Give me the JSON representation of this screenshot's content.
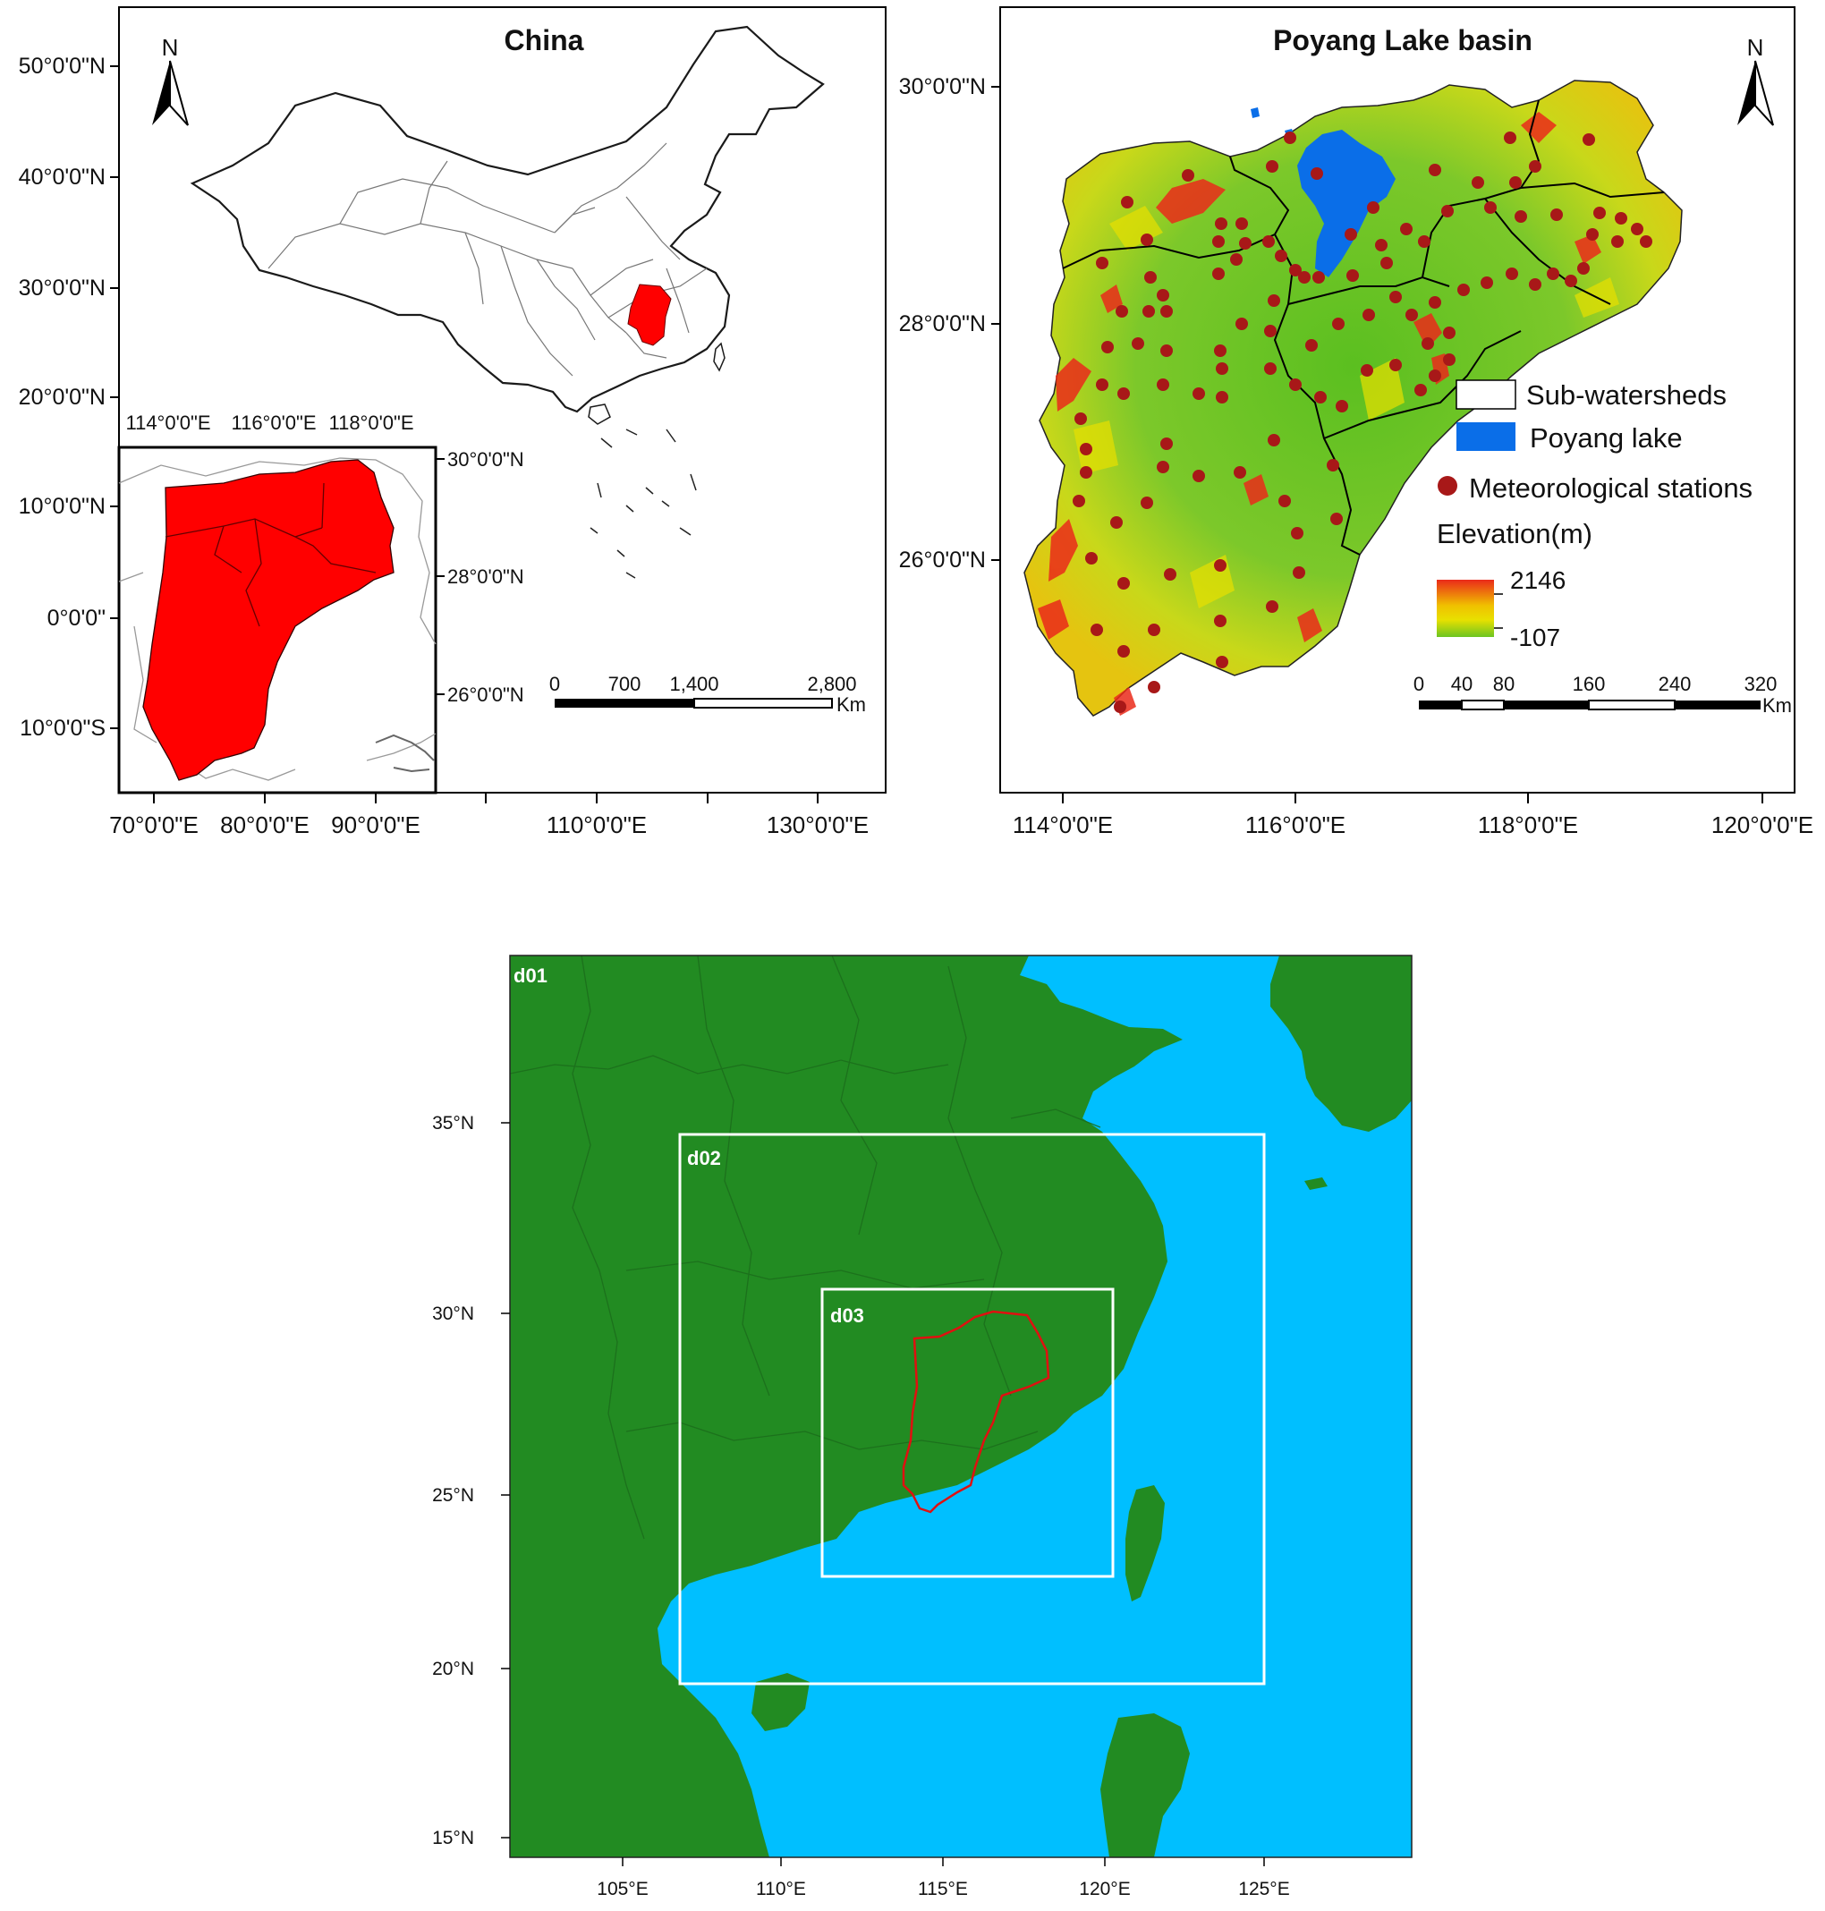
{
  "map_china": {
    "title": "China",
    "north": "N",
    "lat_labels": [
      "50°0'0\"N",
      "40°0'0\"N",
      "30°0'0\"N",
      "20°0'0\"N",
      "10°0'0\"N",
      "0°0'0\"",
      "10°0'0\"S"
    ],
    "lon_labels": [
      "70°0'0\"E",
      "80°0'0\"E",
      "90°0'0\"E",
      "110°0'0\"E",
      "130°0'0\"E"
    ],
    "scale_labels": [
      "0",
      "700",
      "1,400",
      "2,800"
    ],
    "scale_unit": "Km",
    "highlight_color": "#ff0000"
  },
  "inset": {
    "top_labels": [
      "114°0'0\"E",
      "116°0'0\"E",
      "118°0'0\"E"
    ],
    "right_labels": [
      "30°0'0\"N",
      "28°0'0\"N",
      "26°0'0\"N"
    ]
  },
  "map_basin": {
    "title": "Poyang Lake basin",
    "north": "N",
    "lat_labels": [
      "30°0'0\"N",
      "28°0'0\"N",
      "26°0'0\"N"
    ],
    "lon_labels": [
      "114°0'0\"E",
      "116°0'0\"E",
      "118°0'0\"E",
      "120°0'0\"E"
    ],
    "legend": {
      "sub_watersheds": "Sub-watersheds",
      "lake": "Poyang lake",
      "stations": "Meteorological stations",
      "elevation_title": "Elevation(m)",
      "elev_max": "2146",
      "elev_min": "-107"
    },
    "scale_labels": [
      "0",
      "40",
      "80",
      "160",
      "240",
      "320"
    ],
    "scale_unit": "Km",
    "colors": {
      "lake": "#0a6ee8",
      "station": "#a81818",
      "low": "#6cc522",
      "mid": "#e8e000",
      "high": "#ea2a1a"
    }
  },
  "map_wrf": {
    "domains": [
      "d01",
      "d02",
      "d03"
    ],
    "lat_labels": [
      "35°N",
      "30°N",
      "25°N",
      "20°N",
      "15°N"
    ],
    "lon_labels": [
      "105°E",
      "110°E",
      "115°E",
      "120°E",
      "125°E"
    ],
    "colors": {
      "land": "#228b22",
      "sea": "#00bfff",
      "box": "#ffffff",
      "basin": "#e01010"
    }
  }
}
